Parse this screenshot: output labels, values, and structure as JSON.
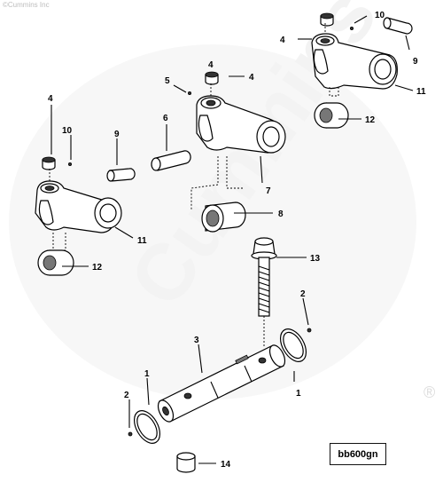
{
  "figure": {
    "copyright": "©Cummins Inc",
    "code": "bb600gn",
    "watermark": "Cummins",
    "registered": "®"
  },
  "callouts": [
    "1",
    "1",
    "2",
    "2",
    "3",
    "4",
    "4",
    "4",
    "4",
    "5",
    "6",
    "7",
    "8",
    "9",
    "9",
    "10",
    "10",
    "11",
    "11",
    "12",
    "12",
    "13",
    "14"
  ]
}
